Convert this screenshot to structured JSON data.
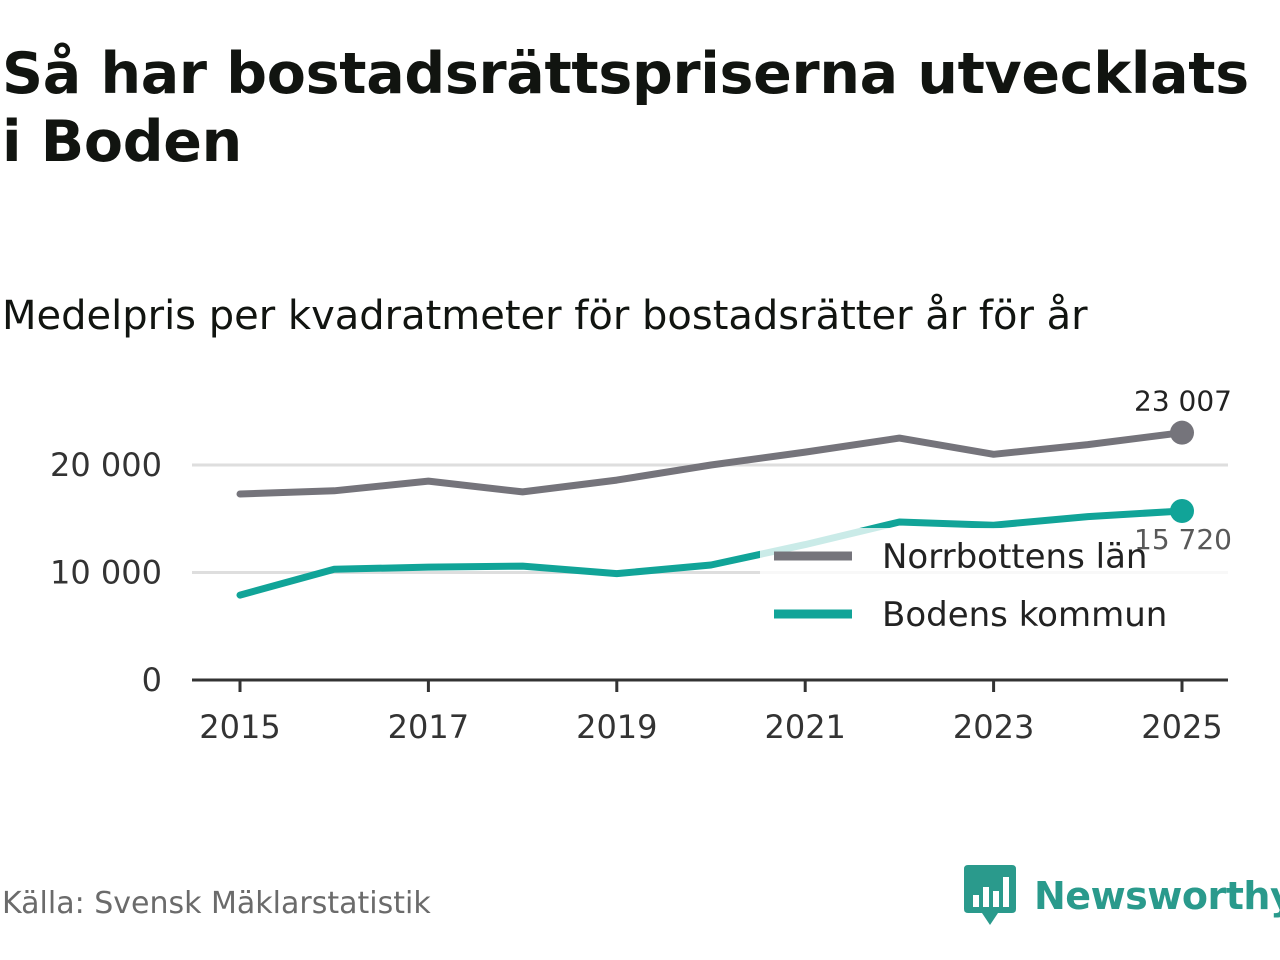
{
  "header": {
    "title": "Så har bostadsrättspriserna utvecklats i Boden",
    "subtitle": "Medelpris per kvadratmeter för bostadsrätter år för år"
  },
  "footer": {
    "source": "Källa: Svensk Mäklarstatistik",
    "brand": "Newsworthy"
  },
  "colors": {
    "grey_series": "#75747b",
    "teal_series": "#11a498",
    "gridline": "#dedede",
    "axis": "#333333",
    "brand": "#2a9a8c"
  },
  "chart_data": {
    "type": "line",
    "title": "Medelpris per kvadratmeter för bostadsrätter år för år",
    "xlabel": "",
    "ylabel": "",
    "x": [
      2015,
      2016,
      2017,
      2018,
      2019,
      2020,
      2021,
      2022,
      2023,
      2024,
      2025
    ],
    "xticks": [
      "2015",
      "2017",
      "2019",
      "2021",
      "2023",
      "2025"
    ],
    "yticks": [
      {
        "value": 0,
        "label": "0"
      },
      {
        "value": 10000,
        "label": "10 000"
      },
      {
        "value": 20000,
        "label": "20 000"
      }
    ],
    "ylim": [
      0,
      25000
    ],
    "grid": true,
    "legend_position": "bottom-right",
    "series": [
      {
        "name": "Norrbottens län",
        "color": "#75747b",
        "values": [
          17300,
          17600,
          18500,
          17500,
          18600,
          20000,
          21200,
          22500,
          21000,
          21900,
          23007
        ],
        "end_label": "23 007"
      },
      {
        "name": "Bodens kommun",
        "color": "#11a498",
        "values": [
          7900,
          10300,
          10500,
          10600,
          9900,
          10700,
          12600,
          14700,
          14400,
          15200,
          15720
        ],
        "end_label": "15 720"
      }
    ]
  }
}
